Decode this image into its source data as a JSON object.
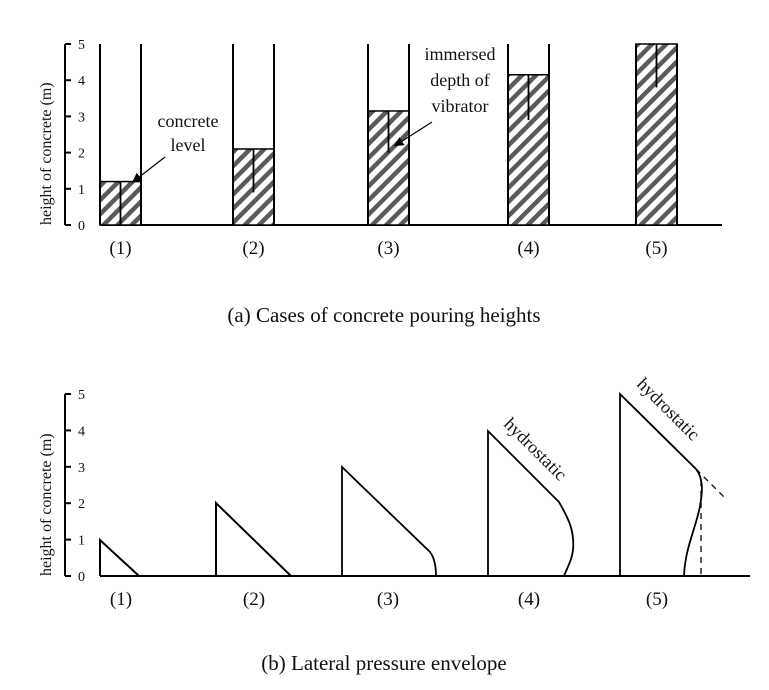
{
  "panel_a": {
    "caption": "(a) Cases of concrete pouring heights",
    "ylabel": "height of concrete (m)",
    "yticks": [
      "0",
      "1",
      "2",
      "3",
      "4",
      "5"
    ],
    "ymax": 5,
    "cases": [
      {
        "label": "(1)",
        "concrete_level_m": 1.2,
        "vibrator_bottom_m": 0.0
      },
      {
        "label": "(2)",
        "concrete_level_m": 2.1,
        "vibrator_bottom_m": 0.9
      },
      {
        "label": "(3)",
        "concrete_level_m": 3.15,
        "vibrator_bottom_m": 2.0
      },
      {
        "label": "(4)",
        "concrete_level_m": 4.15,
        "vibrator_bottom_m": 2.9
      },
      {
        "label": "(5)",
        "concrete_level_m": 5.0,
        "vibrator_bottom_m": 3.8
      }
    ],
    "annotations": {
      "concrete_level": [
        "concrete",
        "level"
      ],
      "vibrator": [
        "immersed",
        "depth of",
        "vibrator"
      ]
    },
    "colors": {
      "hatch": "#5a5a5a",
      "line": "#000000"
    }
  },
  "panel_b": {
    "caption": "(b) Lateral pressure envelope",
    "ylabel": "height of concrete (m)",
    "yticks": [
      "0",
      "1",
      "2",
      "3",
      "4",
      "5"
    ],
    "ymax": 5,
    "cases": [
      {
        "label": "(1)",
        "height_m": 1
      },
      {
        "label": "(2)",
        "height_m": 2
      },
      {
        "label": "(3)",
        "height_m": 3
      },
      {
        "label": "(4)",
        "height_m": 4
      },
      {
        "label": "(5)",
        "height_m": 5
      }
    ],
    "annotations": {
      "hydrostatic": "hydrostatic"
    }
  }
}
